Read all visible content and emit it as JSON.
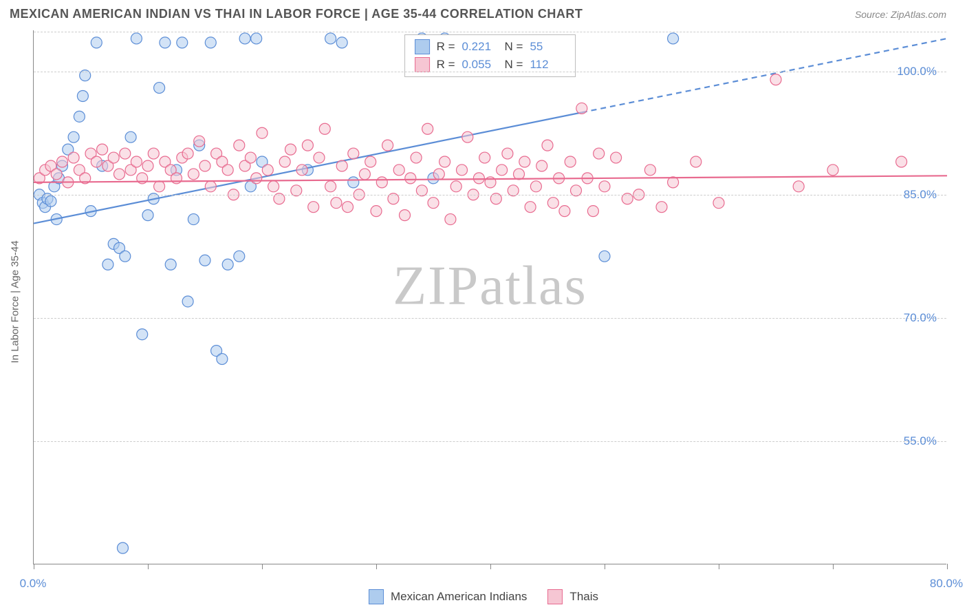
{
  "header": {
    "title": "MEXICAN AMERICAN INDIAN VS THAI IN LABOR FORCE | AGE 35-44 CORRELATION CHART",
    "source": "Source: ZipAtlas.com"
  },
  "chart": {
    "type": "scatter",
    "watermark": "ZIPatlas",
    "background_color": "#ffffff",
    "grid_color": "#cccccc",
    "axis_color": "#888888",
    "y_axis_title": "In Labor Force | Age 35-44",
    "xlim": [
      0,
      80
    ],
    "ylim": [
      40,
      105
    ],
    "x_ticks": [
      0,
      10,
      20,
      30,
      40,
      50,
      60,
      70,
      80
    ],
    "x_tick_labels": [
      "0.0%",
      "",
      "",
      "",
      "",
      "",
      "",
      "",
      "80.0%"
    ],
    "y_ticks": [
      55,
      70,
      85,
      100
    ],
    "y_tick_labels": [
      "55.0%",
      "70.0%",
      "85.0%",
      "100.0%"
    ],
    "tick_label_color": "#5b8dd6",
    "tick_label_fontsize": 17,
    "axis_title_color": "#666666",
    "marker_radius": 8,
    "marker_stroke_width": 1.2,
    "trend_line_width": 2.2,
    "series": [
      {
        "name": "Mexican American Indians",
        "fill_color": "#aeccee",
        "stroke_color": "#5b8dd6",
        "fill_opacity": 0.55,
        "r_value": "0.221",
        "n_value": "55",
        "trend": {
          "x1": 0,
          "y1": 81.5,
          "x2": 48,
          "y2": 95,
          "dash_x2": 80,
          "dash_y2": 104
        },
        "points": [
          [
            0.5,
            85
          ],
          [
            0.8,
            84
          ],
          [
            1.0,
            83.5
          ],
          [
            1.2,
            84.5
          ],
          [
            1.5,
            84.2
          ],
          [
            1.8,
            86
          ],
          [
            2.0,
            82
          ],
          [
            2.2,
            87
          ],
          [
            2.5,
            88.5
          ],
          [
            3.0,
            90.5
          ],
          [
            3.5,
            92
          ],
          [
            4.0,
            94.5
          ],
          [
            4.3,
            97
          ],
          [
            4.5,
            99.5
          ],
          [
            5.0,
            83
          ],
          [
            5.5,
            103.5
          ],
          [
            6.0,
            88.5
          ],
          [
            6.5,
            76.5
          ],
          [
            7.0,
            79
          ],
          [
            7.5,
            78.5
          ],
          [
            8.0,
            77.5
          ],
          [
            8.5,
            92
          ],
          [
            9.0,
            104
          ],
          [
            9.5,
            68
          ],
          [
            10.0,
            82.5
          ],
          [
            10.5,
            84.5
          ],
          [
            11.0,
            98
          ],
          [
            11.5,
            103.5
          ],
          [
            12.0,
            76.5
          ],
          [
            12.5,
            88
          ],
          [
            7.8,
            42
          ],
          [
            13.0,
            103.5
          ],
          [
            13.5,
            72
          ],
          [
            14.0,
            82
          ],
          [
            14.5,
            91
          ],
          [
            15.0,
            77
          ],
          [
            15.5,
            103.5
          ],
          [
            16.0,
            66
          ],
          [
            16.5,
            65
          ],
          [
            17.0,
            76.5
          ],
          [
            18.0,
            77.5
          ],
          [
            18.5,
            104
          ],
          [
            19.0,
            86
          ],
          [
            19.5,
            104
          ],
          [
            20.0,
            89
          ],
          [
            24.0,
            88
          ],
          [
            26.0,
            104
          ],
          [
            27.0,
            103.5
          ],
          [
            28.0,
            86.5
          ],
          [
            34.0,
            104
          ],
          [
            35.0,
            87
          ],
          [
            36.0,
            104
          ],
          [
            37.5,
            103.5
          ],
          [
            50.0,
            77.5
          ],
          [
            56.0,
            104
          ]
        ]
      },
      {
        "name": "Thais",
        "fill_color": "#f6c6d3",
        "stroke_color": "#e86a8f",
        "fill_opacity": 0.55,
        "r_value": "0.055",
        "n_value": "112",
        "trend": {
          "x1": 0,
          "y1": 86.5,
          "x2": 80,
          "y2": 87.3
        },
        "points": [
          [
            0.5,
            87
          ],
          [
            1.0,
            88
          ],
          [
            1.5,
            88.5
          ],
          [
            2.0,
            87.5
          ],
          [
            2.5,
            89
          ],
          [
            3.0,
            86.5
          ],
          [
            3.5,
            89.5
          ],
          [
            4.0,
            88
          ],
          [
            4.5,
            87
          ],
          [
            5.0,
            90
          ],
          [
            5.5,
            89
          ],
          [
            6.0,
            90.5
          ],
          [
            6.5,
            88.5
          ],
          [
            7.0,
            89.5
          ],
          [
            7.5,
            87.5
          ],
          [
            8.0,
            90
          ],
          [
            8.5,
            88
          ],
          [
            9.0,
            89
          ],
          [
            9.5,
            87
          ],
          [
            10.0,
            88.5
          ],
          [
            10.5,
            90
          ],
          [
            11.0,
            86
          ],
          [
            11.5,
            89
          ],
          [
            12.0,
            88
          ],
          [
            12.5,
            87
          ],
          [
            13.0,
            89.5
          ],
          [
            13.5,
            90
          ],
          [
            14.0,
            87.5
          ],
          [
            14.5,
            91.5
          ],
          [
            15.0,
            88.5
          ],
          [
            15.5,
            86
          ],
          [
            16.0,
            90
          ],
          [
            16.5,
            89
          ],
          [
            17.0,
            88
          ],
          [
            17.5,
            85
          ],
          [
            18.0,
            91
          ],
          [
            18.5,
            88.5
          ],
          [
            19.0,
            89.5
          ],
          [
            19.5,
            87
          ],
          [
            20.0,
            92.5
          ],
          [
            20.5,
            88
          ],
          [
            21.0,
            86
          ],
          [
            21.5,
            84.5
          ],
          [
            22.0,
            89
          ],
          [
            22.5,
            90.5
          ],
          [
            23.0,
            85.5
          ],
          [
            23.5,
            88
          ],
          [
            24.0,
            91
          ],
          [
            24.5,
            83.5
          ],
          [
            25.0,
            89.5
          ],
          [
            25.5,
            93
          ],
          [
            26.0,
            86
          ],
          [
            26.5,
            84
          ],
          [
            27.0,
            88.5
          ],
          [
            27.5,
            83.5
          ],
          [
            28.0,
            90
          ],
          [
            28.5,
            85
          ],
          [
            29.0,
            87.5
          ],
          [
            29.5,
            89
          ],
          [
            30.0,
            83
          ],
          [
            30.5,
            86.5
          ],
          [
            31.0,
            91
          ],
          [
            31.5,
            84.5
          ],
          [
            32.0,
            88
          ],
          [
            32.5,
            82.5
          ],
          [
            33.0,
            87
          ],
          [
            33.5,
            89.5
          ],
          [
            34.0,
            85.5
          ],
          [
            34.5,
            93
          ],
          [
            35.0,
            84
          ],
          [
            35.5,
            87.5
          ],
          [
            36.0,
            89
          ],
          [
            36.5,
            82
          ],
          [
            37.0,
            86
          ],
          [
            37.5,
            88
          ],
          [
            38.0,
            92
          ],
          [
            38.5,
            85
          ],
          [
            39.0,
            87
          ],
          [
            39.5,
            89.5
          ],
          [
            40.0,
            86.5
          ],
          [
            40.5,
            84.5
          ],
          [
            41.0,
            88
          ],
          [
            41.5,
            90
          ],
          [
            42.0,
            85.5
          ],
          [
            42.5,
            87.5
          ],
          [
            43.0,
            89
          ],
          [
            43.5,
            83.5
          ],
          [
            44.0,
            86
          ],
          [
            44.5,
            88.5
          ],
          [
            45.0,
            91
          ],
          [
            45.5,
            84
          ],
          [
            46.0,
            87
          ],
          [
            46.5,
            83
          ],
          [
            47.0,
            89
          ],
          [
            47.5,
            85.5
          ],
          [
            48.0,
            95.5
          ],
          [
            48.5,
            87
          ],
          [
            49.0,
            83
          ],
          [
            49.5,
            90
          ],
          [
            50.0,
            86
          ],
          [
            51.0,
            89.5
          ],
          [
            52.0,
            84.5
          ],
          [
            53.0,
            85
          ],
          [
            54.0,
            88
          ],
          [
            55.0,
            83.5
          ],
          [
            56.0,
            86.5
          ],
          [
            58.0,
            89
          ],
          [
            60.0,
            84
          ],
          [
            65.0,
            99
          ],
          [
            67.0,
            86
          ],
          [
            70.0,
            88
          ],
          [
            76.0,
            89
          ]
        ]
      }
    ],
    "legend_r_label": "R =",
    "legend_n_label": "N ="
  }
}
